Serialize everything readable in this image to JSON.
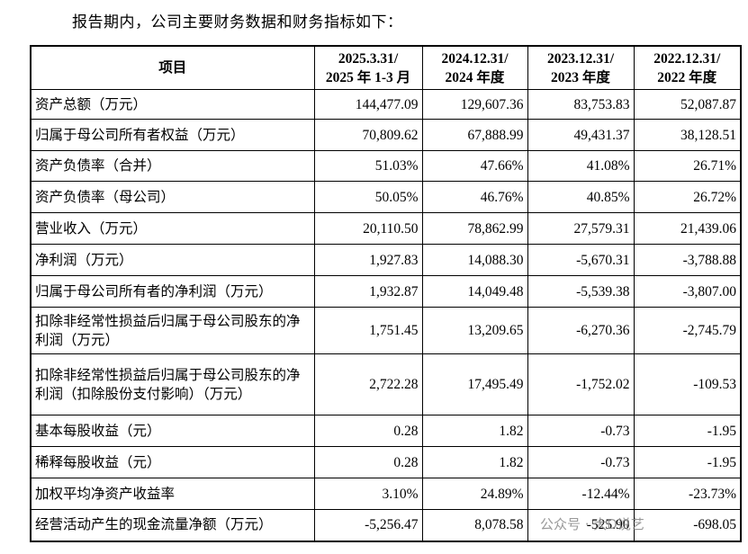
{
  "intro": "报告期内，公司主要财务数据和财务指标如下：",
  "table": {
    "header": [
      "项目",
      [
        "2025.3.31/",
        "2025 年 1-3 月"
      ],
      [
        "2024.12.31/",
        "2024 年度"
      ],
      [
        "2023.12.31/",
        "2023 年度"
      ],
      [
        "2022.12.31/",
        "2022 年度"
      ]
    ],
    "rows": [
      [
        "资产总额（万元）",
        "144,477.09",
        "129,607.36",
        "83,753.83",
        "52,087.87"
      ],
      [
        "归属于母公司所有者权益（万元）",
        "70,809.62",
        "67,888.99",
        "49,431.37",
        "38,128.51"
      ],
      [
        "资产负债率（合并）",
        "51.03%",
        "47.66%",
        "41.08%",
        "26.71%"
      ],
      [
        "资产负债率（母公司）",
        "50.05%",
        "46.76%",
        "40.85%",
        "26.72%"
      ],
      [
        "营业收入（万元）",
        "20,110.50",
        "78,862.99",
        "27,579.31",
        "21,439.06"
      ],
      [
        "净利润（万元）",
        "1,927.83",
        "14,088.30",
        "-5,670.31",
        "-3,788.88"
      ],
      [
        "归属于母公司所有者的净利润（万元）",
        "1,932.87",
        "14,049.48",
        "-5,539.38",
        "-3,807.00"
      ],
      [
        "扣除非经常性损益后归属于母公司股东的净利润（万元）",
        "1,751.45",
        "13,209.65",
        "-6,270.36",
        "-2,745.79"
      ],
      [
        "扣除非经常性损益后归属于母公司股东的净利润（扣除股份支付影响）（万元）",
        "2,722.28",
        "17,495.49",
        "-1,752.02",
        "-109.53"
      ],
      [
        "基本每股收益（元）",
        "0.28",
        "1.82",
        "-0.73",
        "-1.95"
      ],
      [
        "稀释每股收益（元）",
        "0.28",
        "1.82",
        "-0.73",
        "-1.95"
      ],
      [
        "加权平均净资产收益率",
        "3.10%",
        "24.89%",
        "-12.44%",
        "-23.73%"
      ],
      [
        "经营活动产生的现金流量净额（万元）",
        "-5,256.47",
        "8,078.58",
        "-525.90",
        "-698.05"
      ]
    ]
  },
  "watermark": "公众号 · 大D说艺"
}
